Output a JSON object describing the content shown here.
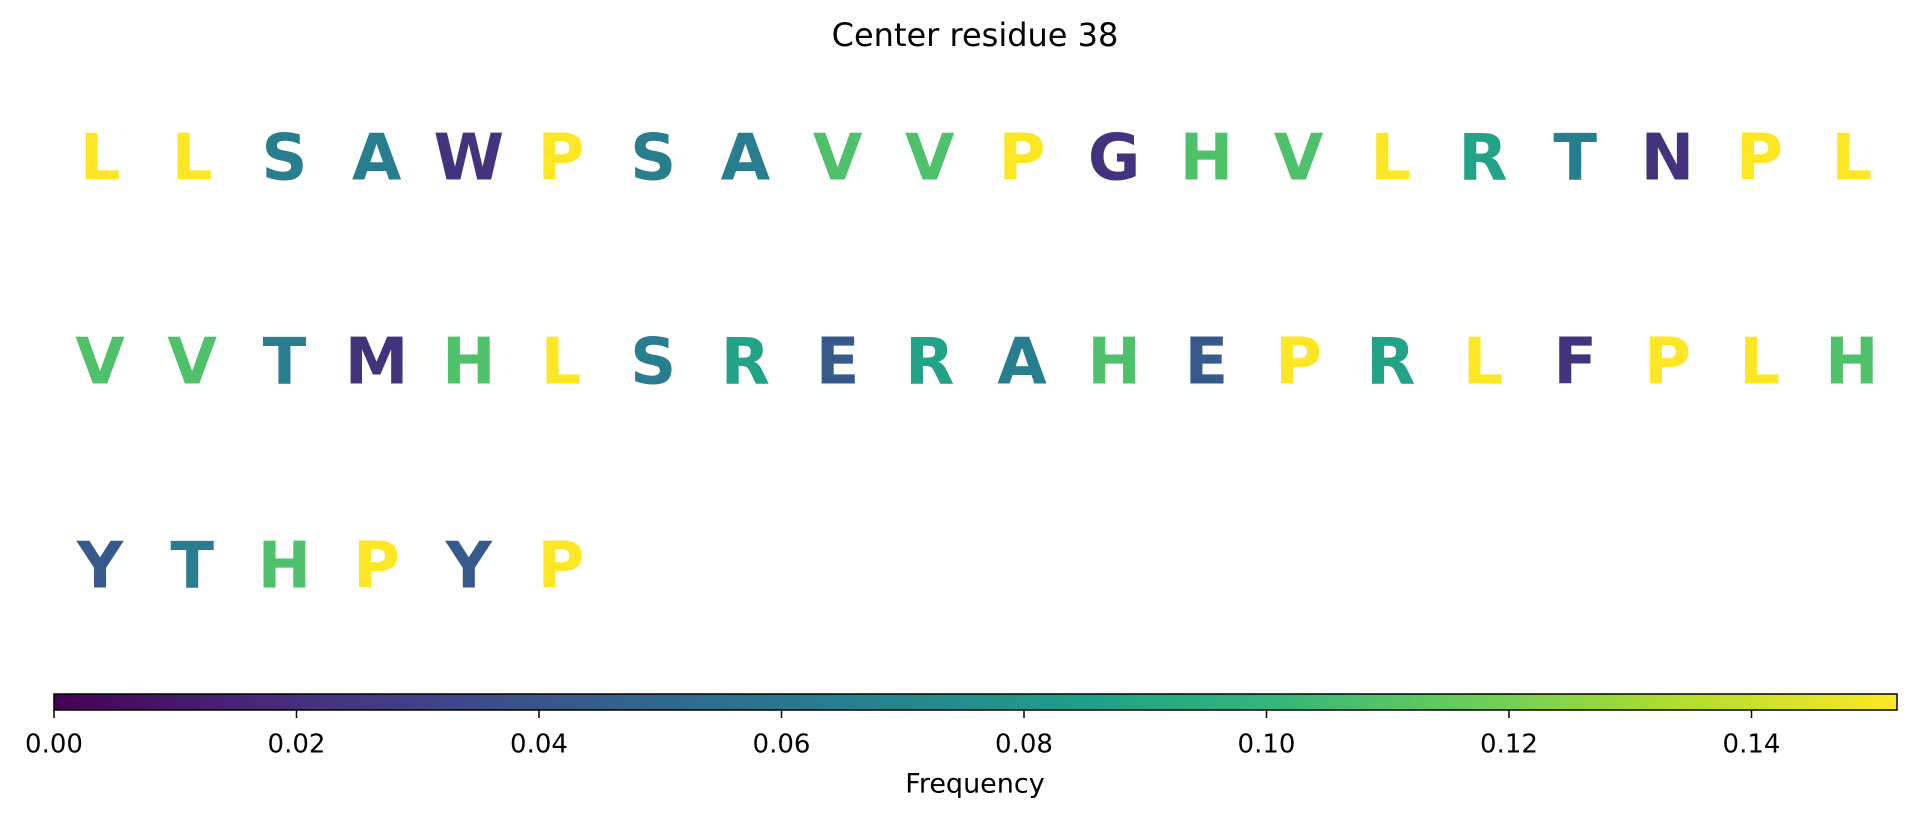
{
  "chart_data": {
    "type": "residue_map",
    "title": "Center residue 38",
    "letters": [
      "L",
      "L",
      "S",
      "A",
      "W",
      "P",
      "S",
      "A",
      "V",
      "V",
      "P",
      "G",
      "H",
      "V",
      "L",
      "R",
      "T",
      "N",
      "P",
      "L",
      "V",
      "V",
      "T",
      "M",
      "H",
      "L",
      "S",
      "R",
      "E",
      "R",
      "A",
      "H",
      "E",
      "P",
      "R",
      "L",
      "F",
      "P",
      "L",
      "H",
      "Y",
      "T",
      "H",
      "P",
      "Y",
      "P"
    ],
    "values": [
      0.152,
      0.152,
      0.065,
      0.065,
      0.022,
      0.152,
      0.065,
      0.065,
      0.109,
      0.109,
      0.152,
      0.022,
      0.109,
      0.109,
      0.152,
      0.087,
      0.065,
      0.022,
      0.152,
      0.152,
      0.109,
      0.109,
      0.065,
      0.022,
      0.109,
      0.152,
      0.065,
      0.087,
      0.043,
      0.087,
      0.065,
      0.109,
      0.043,
      0.152,
      0.087,
      0.152,
      0.022,
      0.152,
      0.152,
      0.109,
      0.043,
      0.065,
      0.109,
      0.152,
      0.043,
      0.152
    ],
    "colormap": "viridis",
    "colorbar_label": "Frequency",
    "xlim": [
      0,
      0.152
    ],
    "xticks": [
      {
        "value": 0,
        "label": "0.00"
      },
      {
        "value": 0.02,
        "label": "0.02"
      },
      {
        "value": 0.04,
        "label": "0.04"
      },
      {
        "value": 0.06,
        "label": "0.06"
      },
      {
        "value": 0.08,
        "label": "0.08"
      },
      {
        "value": 0.1,
        "label": "0.10"
      },
      {
        "value": 0.12,
        "label": "0.12"
      },
      {
        "value": 0.14,
        "label": "0.14"
      }
    ]
  }
}
